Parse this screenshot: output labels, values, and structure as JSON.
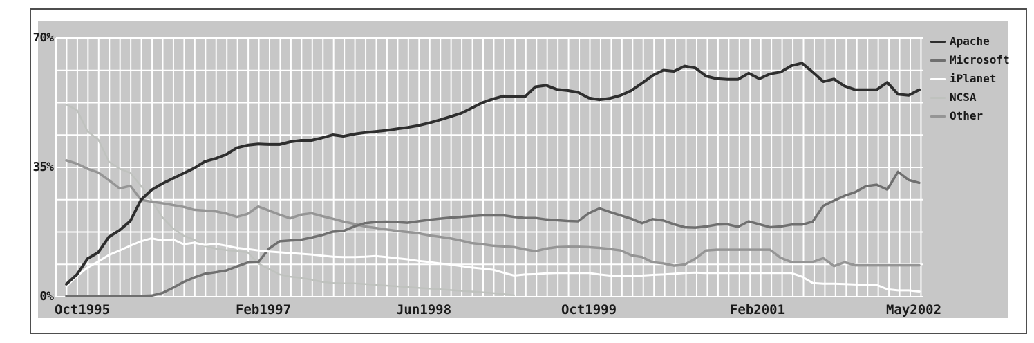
{
  "chart_data": {
    "type": "line",
    "title": "",
    "grid": true,
    "legend_position": "right",
    "y_axis": {
      "tick_labels": [
        "70%",
        "35%",
        "0%"
      ],
      "range": [
        0,
        70
      ],
      "grid_rows": 8
    },
    "x_axis": {
      "tick_labels": [
        "Oct1995",
        "Feb1997",
        "Jun1998",
        "Oct1999",
        "Feb2001",
        "May2002"
      ],
      "cadence": "monthly"
    },
    "series": [
      {
        "name": "Apache",
        "color": "#2e2e2e",
        "values": [
          3.4,
          6.0,
          10.3,
          12.0,
          16.2,
          18.0,
          20.5,
          26.2,
          28.9,
          30.6,
          32.0,
          33.4,
          34.8,
          36.6,
          37.4,
          38.5,
          40.3,
          41.0,
          41.3,
          41.2,
          41.2,
          41.9,
          42.3,
          42.3,
          43.0,
          43.8,
          43.4,
          44.0,
          44.4,
          44.7,
          45.0,
          45.4,
          45.8,
          46.3,
          47.0,
          47.8,
          48.7,
          49.6,
          51.0,
          52.5,
          53.5,
          54.3,
          54.2,
          54.1,
          56.8,
          57.2,
          56.1,
          55.8,
          55.3,
          53.8,
          53.3,
          53.7,
          54.5,
          55.8,
          57.8,
          59.9,
          61.3,
          61.0,
          62.4,
          61.9,
          59.7,
          59.0,
          58.8,
          58.8,
          60.5,
          59.0,
          60.3,
          60.8,
          62.5,
          63.2,
          60.8,
          58.2,
          58.9,
          57.0,
          56.0,
          56.0,
          56.0,
          58.0,
          54.8,
          54.5,
          56.0
        ]
      },
      {
        "name": "Microsoft",
        "color": "#6f6f6f",
        "values": [
          0.2,
          0.2,
          0.2,
          0.2,
          0.2,
          0.2,
          0.2,
          0.2,
          0.3,
          1.0,
          2.4,
          4.0,
          5.2,
          6.2,
          6.6,
          7.1,
          8.2,
          9.2,
          9.3,
          13.0,
          15.0,
          15.2,
          15.4,
          16.0,
          16.7,
          17.6,
          17.8,
          19.0,
          19.9,
          20.2,
          20.3,
          20.2,
          20.0,
          20.4,
          20.8,
          21.1,
          21.4,
          21.6,
          21.8,
          22.0,
          22.0,
          22.0,
          21.6,
          21.3,
          21.3,
          20.9,
          20.7,
          20.5,
          20.4,
          22.6,
          23.9,
          22.9,
          22.0,
          21.1,
          19.9,
          21.0,
          20.6,
          19.6,
          18.8,
          18.7,
          19.0,
          19.5,
          19.6,
          18.9,
          20.4,
          19.6,
          18.8,
          19.0,
          19.5,
          19.5,
          20.3,
          24.6,
          26.0,
          27.3,
          28.3,
          29.9,
          30.3,
          29.0,
          33.8,
          31.6,
          30.8
        ]
      },
      {
        "name": "iPlanet",
        "color": "#ffffff",
        "values": [
          2.8,
          5.6,
          7.9,
          9.5,
          11.3,
          12.5,
          13.8,
          15.0,
          15.8,
          15.2,
          15.5,
          14.2,
          14.6,
          14.0,
          14.3,
          13.8,
          13.2,
          12.9,
          12.5,
          12.2,
          12.0,
          11.8,
          11.6,
          11.4,
          11.1,
          10.8,
          10.7,
          10.7,
          10.8,
          11.0,
          10.7,
          10.4,
          10.1,
          9.7,
          9.4,
          9.0,
          8.7,
          8.3,
          7.9,
          7.6,
          7.3,
          6.5,
          5.7,
          6.0,
          6.1,
          6.3,
          6.4,
          6.4,
          6.4,
          6.4,
          6.0,
          5.7,
          5.7,
          5.7,
          5.7,
          5.9,
          6.0,
          6.2,
          6.4,
          6.5,
          6.4,
          6.4,
          6.4,
          6.4,
          6.4,
          6.4,
          6.4,
          6.4,
          6.4,
          5.4,
          3.7,
          3.5,
          3.5,
          3.4,
          3.3,
          3.2,
          3.2,
          2.0,
          1.7,
          1.7,
          1.4
        ]
      },
      {
        "name": "NCSA",
        "color": "#bfc2be",
        "values": [
          52.0,
          50.5,
          44.7,
          42.5,
          36.5,
          34.6,
          33.5,
          30.0,
          26.0,
          21.5,
          18.5,
          16.5,
          15.4,
          13.7,
          13.0,
          12.6,
          12.3,
          12.0,
          9.0,
          7.5,
          6.0,
          5.4,
          5.1,
          4.6,
          4.0,
          3.7,
          3.6,
          3.6,
          3.4,
          3.2,
          3.0,
          2.8,
          2.6,
          2.4,
          2.2,
          2.0,
          1.8,
          1.6,
          1.4,
          1.2,
          1.0,
          0.7,
          0.4,
          null,
          null,
          null,
          null,
          null,
          null,
          null,
          null,
          null,
          null,
          null,
          null,
          null,
          null,
          null,
          null,
          null,
          null,
          null,
          null,
          null,
          null,
          null,
          null,
          null,
          null,
          null,
          null,
          null,
          null,
          null,
          null,
          null,
          null,
          null,
          null,
          null,
          null
        ]
      },
      {
        "name": "Other",
        "color": "#959595",
        "values": [
          36.9,
          36.0,
          34.6,
          33.6,
          31.5,
          29.3,
          30.0,
          26.2,
          25.7,
          25.3,
          24.8,
          24.3,
          23.5,
          23.3,
          23.1,
          22.5,
          21.6,
          22.4,
          24.4,
          23.3,
          22.2,
          21.2,
          22.2,
          22.6,
          21.8,
          21.1,
          20.3,
          19.7,
          19.0,
          18.6,
          18.2,
          17.8,
          17.5,
          17.2,
          16.6,
          16.2,
          15.8,
          15.2,
          14.5,
          14.2,
          13.8,
          13.6,
          13.4,
          12.8,
          12.3,
          13.0,
          13.4,
          13.5,
          13.5,
          13.4,
          13.2,
          12.9,
          12.5,
          11.2,
          10.7,
          9.3,
          9.0,
          8.4,
          8.7,
          10.3,
          12.5,
          12.7,
          12.7,
          12.7,
          12.7,
          12.7,
          12.7,
          10.5,
          9.4,
          9.4,
          9.4,
          10.4,
          8.3,
          9.3,
          8.5,
          8.5,
          8.5,
          8.5,
          8.5,
          8.5,
          8.5
        ]
      }
    ]
  }
}
